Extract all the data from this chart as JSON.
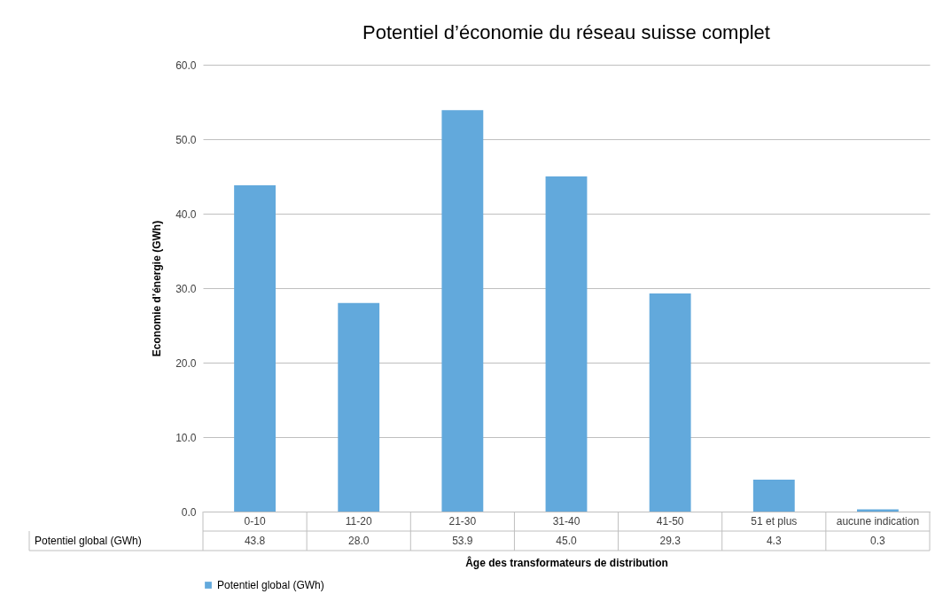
{
  "chart_data": {
    "type": "bar",
    "title": "Potentiel d’économie du réseau suisse complet",
    "xlabel": "Âge des transformateurs de distribution",
    "ylabel": "Economie d’énergie (GWh)",
    "categories": [
      "0-10",
      "11-20",
      "21-30",
      "31-40",
      "41-50",
      "51 et plus",
      "aucune indication"
    ],
    "series": [
      {
        "name": "Potentiel global (GWh)",
        "color": "#62a9dc",
        "values": [
          43.8,
          28.0,
          53.9,
          45.0,
          29.3,
          4.3,
          0.3
        ],
        "value_labels": [
          "43.8",
          "28.0",
          "53.9",
          "45.0",
          "29.3",
          "4.3",
          "0.3"
        ]
      }
    ],
    "ylim": [
      0,
      60
    ],
    "yticks": [
      {
        "value": 0,
        "label": "0.0"
      },
      {
        "value": 10,
        "label": "10.0"
      },
      {
        "value": 20,
        "label": "20.0"
      },
      {
        "value": 30,
        "label": "30.0"
      },
      {
        "value": 40,
        "label": "40.0"
      },
      {
        "value": 50,
        "label": "50.0"
      },
      {
        "value": 60,
        "label": "60.0"
      }
    ],
    "grid": "y",
    "legend": "bottom"
  }
}
